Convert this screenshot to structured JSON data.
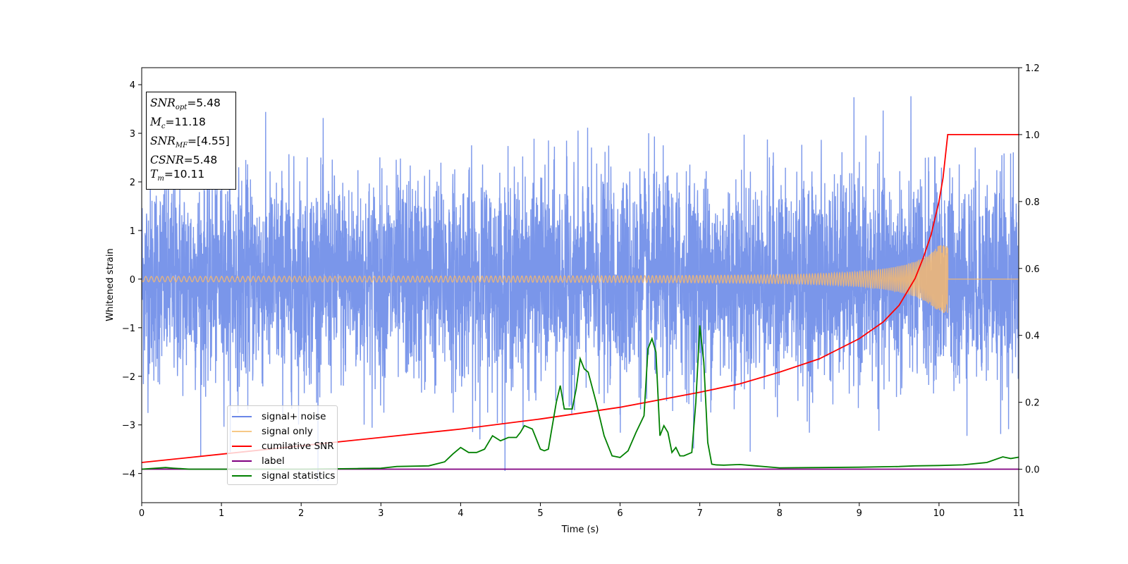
{
  "chart_data": {
    "type": "line",
    "xlabel": "Time (s)",
    "ylabel": "Whitened strain",
    "xlim": [
      0,
      11
    ],
    "ylim": [
      -4.6,
      4.35
    ],
    "y2lim": [
      -0.1,
      1.2
    ],
    "xticks": [
      "0",
      "1",
      "2",
      "3",
      "4",
      "5",
      "6",
      "7",
      "8",
      "9",
      "10",
      "11"
    ],
    "yticks": [
      "4",
      "3",
      "2",
      "1",
      "0",
      "−1",
      "−2",
      "−3",
      "−4"
    ],
    "y2ticks": [
      "1.2",
      "1.0",
      "0.8",
      "0.6",
      "0.4",
      "0.2",
      "0.0"
    ],
    "legend_placement": "lower-left",
    "grid": false,
    "series": [
      {
        "name": "signal+ noise",
        "axis": "left",
        "color": "#4169e1",
        "kind": "noise",
        "description_values": {
          "typical_amplitude": 1.0,
          "max_peak": 3.93,
          "min_peak": -4.15
        },
        "x_range": [
          0,
          11
        ]
      },
      {
        "name": "signal only",
        "axis": "left",
        "color": "#f5b971",
        "kind": "chirp",
        "x_range": [
          0,
          11
        ],
        "merger_time": 10.11,
        "peak_amplitude": 0.7
      },
      {
        "name": "cumilative SNR",
        "axis": "right",
        "color": "#ff0000",
        "x": [
          0,
          1,
          2,
          3,
          4,
          5,
          6,
          7,
          7.5,
          8,
          8.5,
          9,
          9.3,
          9.5,
          9.7,
          9.8,
          9.9,
          10.0,
          10.05,
          10.11,
          11
        ],
        "y": [
          0.02,
          0.045,
          0.07,
          0.095,
          0.12,
          0.15,
          0.185,
          0.23,
          0.255,
          0.29,
          0.33,
          0.39,
          0.44,
          0.49,
          0.57,
          0.63,
          0.7,
          0.8,
          0.87,
          1.0,
          1.0
        ]
      },
      {
        "name": "label",
        "axis": "right",
        "color": "#800080",
        "x": [
          0,
          11
        ],
        "y": [
          0.0,
          0.0
        ]
      },
      {
        "name": "signal statistics",
        "axis": "right",
        "color": "#008000",
        "x": [
          0,
          0.3,
          0.4,
          0.6,
          1,
          2,
          2.7,
          3,
          3.2,
          3.6,
          3.8,
          3.9,
          4.0,
          4.1,
          4.2,
          4.3,
          4.4,
          4.5,
          4.6,
          4.7,
          4.75,
          4.8,
          4.9,
          5.0,
          5.05,
          5.1,
          5.2,
          5.25,
          5.3,
          5.4,
          5.45,
          5.5,
          5.55,
          5.6,
          5.7,
          5.8,
          5.9,
          6.0,
          6.1,
          6.2,
          6.3,
          6.35,
          6.4,
          6.45,
          6.5,
          6.55,
          6.6,
          6.65,
          6.7,
          6.75,
          6.8,
          6.9,
          6.95,
          7.0,
          7.05,
          7.1,
          7.15,
          7.2,
          7.3,
          7.5,
          7.7,
          8,
          8.5,
          9,
          9.5,
          9.7,
          10,
          10.3,
          10.6,
          10.8,
          10.9,
          11
        ],
        "y": [
          0.0,
          0.005,
          0.003,
          0.0,
          0.0,
          0.0,
          0.002,
          0.003,
          0.008,
          0.01,
          0.022,
          0.045,
          0.065,
          0.05,
          0.05,
          0.06,
          0.1,
          0.085,
          0.095,
          0.095,
          0.11,
          0.13,
          0.12,
          0.06,
          0.055,
          0.06,
          0.2,
          0.25,
          0.18,
          0.18,
          0.24,
          0.33,
          0.3,
          0.29,
          0.2,
          0.1,
          0.04,
          0.035,
          0.055,
          0.11,
          0.16,
          0.36,
          0.39,
          0.35,
          0.1,
          0.13,
          0.11,
          0.05,
          0.065,
          0.04,
          0.04,
          0.05,
          0.2,
          0.43,
          0.32,
          0.08,
          0.015,
          0.013,
          0.012,
          0.014,
          0.01,
          0.004,
          0.005,
          0.006,
          0.008,
          0.01,
          0.011,
          0.013,
          0.02,
          0.037,
          0.032,
          0.036
        ]
      }
    ]
  },
  "info_box": {
    "snr_opt_label": "SNR",
    "snr_opt_sub": "opt",
    "snr_opt_value": "=5.48",
    "mc_label": "M",
    "mc_sub": "c",
    "mc_value": "=11.18",
    "snr_mf_label": "SNR",
    "snr_mf_sub": "MF",
    "snr_mf_value": "=[4.55]",
    "csnr_label": "CSNR",
    "csnr_value": "=5.48",
    "tm_label": "T",
    "tm_sub": "m",
    "tm_value": "=10.11"
  },
  "legend": [
    {
      "label": "signal+ noise",
      "color": "#6a86e8"
    },
    {
      "label": "signal only",
      "color": "#f7c987"
    },
    {
      "label": "cumilative SNR",
      "color": "#ff0000"
    },
    {
      "label": "label",
      "color": "#800080"
    },
    {
      "label": "signal statistics",
      "color": "#008000"
    }
  ]
}
